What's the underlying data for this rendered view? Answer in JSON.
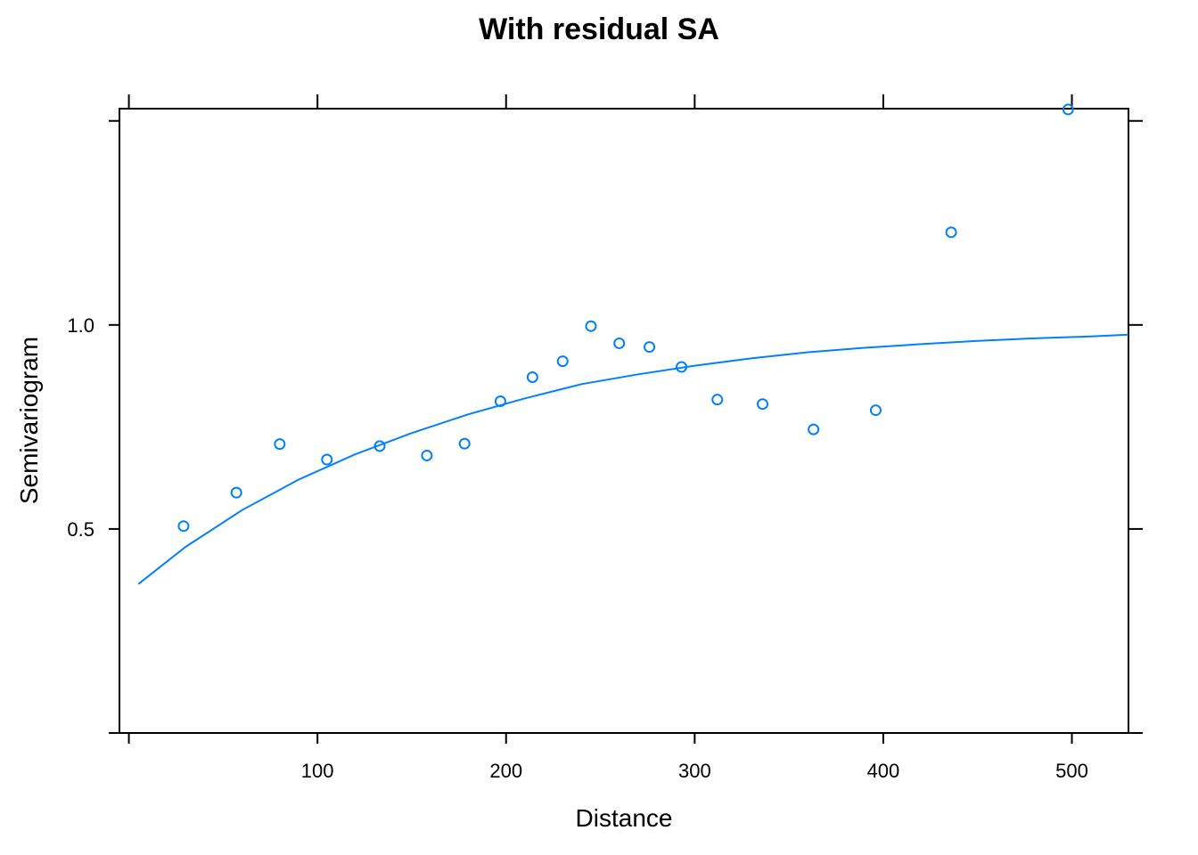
{
  "chart_data": {
    "type": "scatter",
    "title": "With residual SA",
    "xlabel": "Distance",
    "ylabel": "Semivariogram",
    "xlim": [
      -5,
      530
    ],
    "ylim": [
      0.0,
      1.53
    ],
    "x_ticks": [
      100,
      200,
      300,
      400,
      500
    ],
    "x_tick_labels": [
      "100",
      "200",
      "300",
      "400",
      "500"
    ],
    "y_ticks": [
      0.5,
      1.0
    ],
    "y_tick_labels": [
      "0.5",
      "1.0"
    ],
    "grid": false,
    "color": "#0080ff",
    "points": [
      {
        "x": 29,
        "y": 0.507
      },
      {
        "x": 57,
        "y": 0.589
      },
      {
        "x": 80,
        "y": 0.708
      },
      {
        "x": 105,
        "y": 0.67
      },
      {
        "x": 133,
        "y": 0.703
      },
      {
        "x": 158,
        "y": 0.68
      },
      {
        "x": 178,
        "y": 0.709
      },
      {
        "x": 197,
        "y": 0.813
      },
      {
        "x": 214,
        "y": 0.872
      },
      {
        "x": 230,
        "y": 0.911
      },
      {
        "x": 245,
        "y": 0.997
      },
      {
        "x": 260,
        "y": 0.955
      },
      {
        "x": 276,
        "y": 0.946
      },
      {
        "x": 293,
        "y": 0.897
      },
      {
        "x": 312,
        "y": 0.817
      },
      {
        "x": 336,
        "y": 0.806
      },
      {
        "x": 363,
        "y": 0.744
      },
      {
        "x": 396,
        "y": 0.791
      },
      {
        "x": 436,
        "y": 1.227
      },
      {
        "x": 498,
        "y": 1.528
      }
    ],
    "fitted_curve": {
      "x": [
        5,
        30,
        60,
        90,
        120,
        150,
        180,
        210,
        240,
        270,
        300,
        330,
        360,
        390,
        420,
        450,
        480,
        510,
        530
      ],
      "y": [
        0.365,
        0.456,
        0.546,
        0.621,
        0.683,
        0.735,
        0.781,
        0.82,
        0.855,
        0.879,
        0.9,
        0.918,
        0.933,
        0.944,
        0.953,
        0.961,
        0.967,
        0.972,
        0.976
      ]
    }
  }
}
